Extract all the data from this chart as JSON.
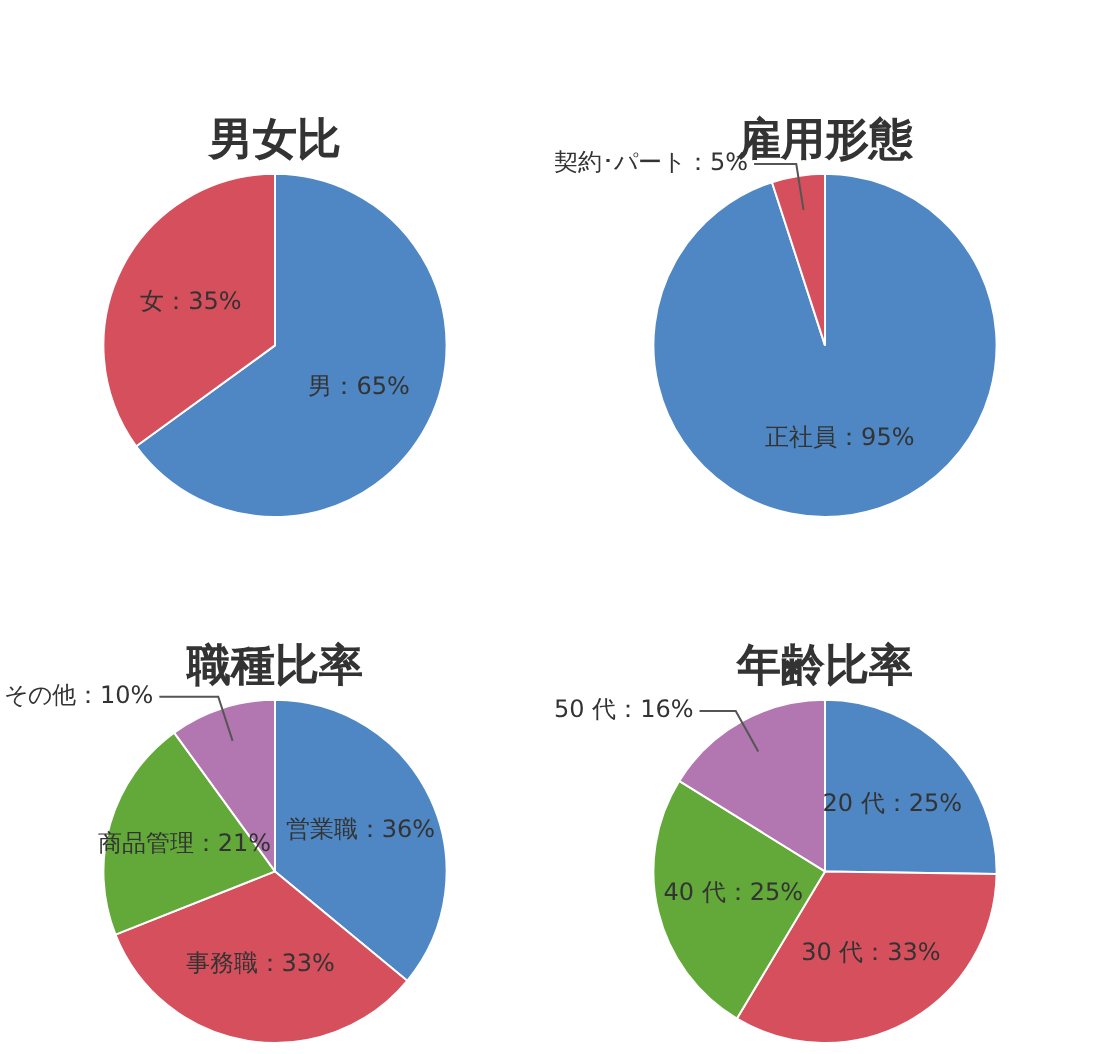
{
  "chart_data": [
    {
      "type": "pie",
      "title": "男女比",
      "categories": [
        "男",
        "女"
      ],
      "values": [
        65,
        35
      ],
      "colors": [
        "#4e87c4",
        "#d64f5c"
      ],
      "value_labels": [
        "65%",
        "35%"
      ],
      "legend": false
    },
    {
      "type": "pie",
      "title": "雇用形態",
      "categories": [
        "正社員",
        "契約･パート"
      ],
      "values": [
        95,
        5
      ],
      "colors": [
        "#4e87c4",
        "#d64f5c"
      ],
      "value_labels": [
        "95%",
        "5%"
      ],
      "legend": false
    },
    {
      "type": "pie",
      "title": "職種比率",
      "categories": [
        "営業職",
        "事務職",
        "商品管理",
        "その他"
      ],
      "values": [
        36,
        33,
        21,
        10
      ],
      "colors": [
        "#4e87c4",
        "#d64f5c",
        "#62a93a",
        "#b276b0"
      ],
      "value_labels": [
        "36%",
        "33%",
        "21%",
        "10%"
      ],
      "legend": false
    },
    {
      "type": "pie",
      "title": "年齢比率",
      "categories": [
        "20 代",
        "30 代",
        "40 代",
        "50 代"
      ],
      "values": [
        25,
        33,
        25,
        16
      ],
      "colors": [
        "#4e87c4",
        "#d64f5c",
        "#62a93a",
        "#b276b0"
      ],
      "value_labels": [
        "25%",
        "33%",
        "25%",
        "16%"
      ],
      "legend": false
    }
  ]
}
